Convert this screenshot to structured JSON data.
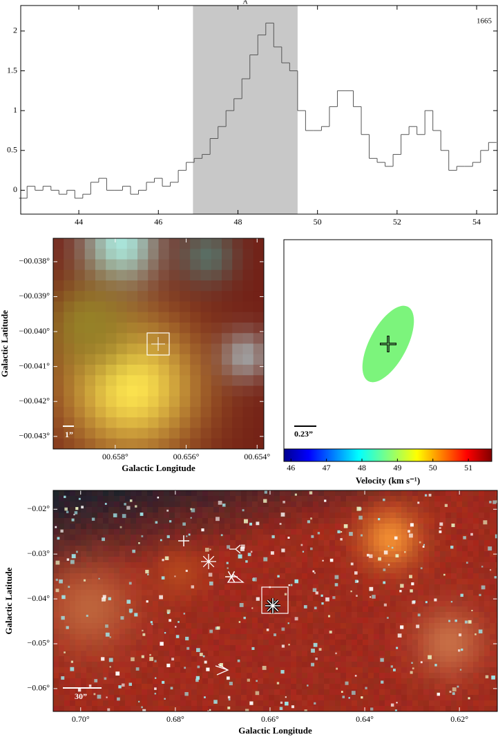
{
  "chart_data": [
    {
      "type": "step",
      "x": [
        42.6,
        42.8,
        43.0,
        43.2,
        43.4,
        43.6,
        43.8,
        44.0,
        44.2,
        44.4,
        44.6,
        44.8,
        45.0,
        45.2,
        45.4,
        45.6,
        45.8,
        46.0,
        46.2,
        46.4,
        46.6,
        46.8,
        47.0,
        47.2,
        47.4,
        47.6,
        47.8,
        48.0,
        48.2,
        48.4,
        48.6,
        48.8,
        49.0,
        49.2,
        49.4,
        49.6,
        49.8,
        50.0,
        50.2,
        50.4,
        50.6,
        50.8,
        51.0,
        51.2,
        51.4,
        51.6,
        51.8,
        52.0,
        52.2,
        52.4,
        52.6,
        52.8,
        53.0,
        53.2,
        53.4,
        53.6,
        53.8,
        54.0,
        54.2,
        54.4
      ],
      "values": [
        -0.1,
        0.05,
        0.0,
        0.05,
        0.0,
        -0.05,
        0.0,
        -0.1,
        -0.05,
        0.1,
        0.15,
        0.0,
        0.0,
        0.05,
        -0.05,
        0.0,
        0.1,
        0.15,
        0.05,
        0.1,
        0.25,
        0.35,
        0.4,
        0.45,
        0.65,
        0.8,
        1.0,
        1.15,
        1.4,
        1.7,
        1.95,
        2.1,
        1.8,
        1.6,
        1.5,
        1.0,
        0.75,
        0.75,
        0.8,
        1.05,
        1.25,
        1.25,
        1.05,
        0.7,
        0.4,
        0.35,
        0.3,
        0.45,
        0.7,
        0.8,
        0.7,
        1.0,
        0.75,
        0.5,
        0.25,
        0.3,
        0.3,
        0.35,
        0.5,
        0.6
      ],
      "color": "#555555",
      "xlim": [
        42.54,
        54.52
      ],
      "ylim": [
        -0.3,
        2.32
      ],
      "xticks": [
        44,
        46,
        48,
        50,
        52,
        54
      ],
      "yticks": [
        0,
        0.5,
        1,
        1.5,
        2
      ],
      "shade": [
        46.87,
        49.5
      ],
      "shade_label": "A",
      "annotation": "1665"
    },
    {
      "type": "image",
      "xlabel": "Galactic Longitude",
      "ylabel": "Galactic Latitude",
      "xlim": [
        0.65975,
        0.65381
      ],
      "ylim": [
        -0.04336,
        -0.03733
      ],
      "xticks": [
        {
          "value": 0.658,
          "label": "00.658°"
        },
        {
          "value": 0.656,
          "label": "00.656°"
        },
        {
          "value": 0.654,
          "label": "00.654°"
        }
      ],
      "yticks": [
        {
          "value": -0.038,
          "label": "−00.038°"
        },
        {
          "value": -0.039,
          "label": "−00.039°"
        },
        {
          "value": -0.04,
          "label": "−00.040°"
        },
        {
          "value": -0.041,
          "label": "−00.041°"
        },
        {
          "value": -0.042,
          "label": "−00.042°"
        },
        {
          "value": -0.043,
          "label": "−00.043°"
        }
      ],
      "scalebar": "1”"
    },
    {
      "type": "velocity-map",
      "scalebar": "0.23”",
      "colorbar": {
        "label": "Velocity (km s⁻¹)",
        "lim": [
          45.8,
          51.66
        ],
        "ticks": [
          46,
          47,
          48,
          49,
          50,
          51
        ]
      }
    },
    {
      "type": "image",
      "xlabel": "Galactic Longitude",
      "ylabel": "Galactic Latitude",
      "xlim": [
        0.7058,
        0.612
      ],
      "ylim": [
        -0.0651,
        -0.0158
      ],
      "xticks": [
        {
          "value": 0.7,
          "label": "0.70°"
        },
        {
          "value": 0.68,
          "label": "0.68°"
        },
        {
          "value": 0.66,
          "label": "0.66°"
        },
        {
          "value": 0.64,
          "label": "0.64°"
        },
        {
          "value": 0.62,
          "label": "0.62°"
        }
      ],
      "yticks": [
        {
          "value": -0.02,
          "label": "−0.02°"
        },
        {
          "value": -0.03,
          "label": "−0.03°"
        },
        {
          "value": -0.04,
          "label": "−0.04°"
        },
        {
          "value": -0.05,
          "label": "−0.05°"
        },
        {
          "value": -0.06,
          "label": "−0.06°"
        }
      ],
      "scalebar": "30”"
    }
  ]
}
